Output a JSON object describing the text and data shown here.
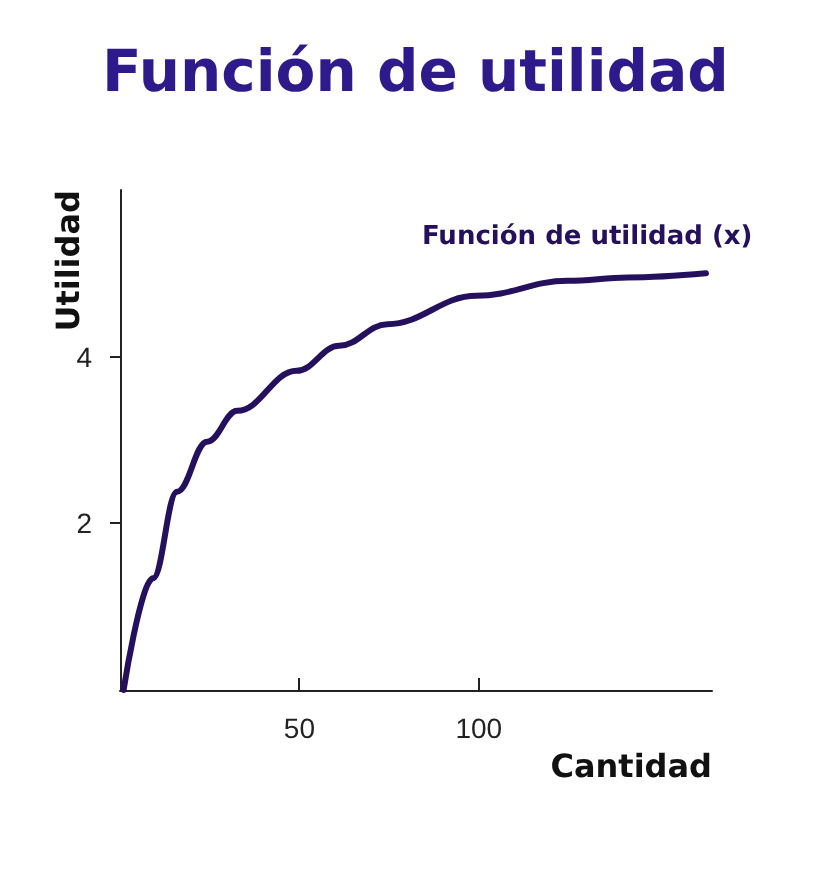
{
  "chart_data": {
    "type": "line",
    "title": "Función de utilidad",
    "xlabel": "Cantidad",
    "ylabel": "Utilidad",
    "x": [
      1,
      9.2,
      15.9,
      24.3,
      32.7,
      49.2,
      61.1,
      74.5,
      99.3,
      124.8,
      141.5,
      163.3
    ],
    "series": [
      {
        "name": "Función de utilidad (x)",
        "color": "#25105e",
        "values": [
          0,
          1.34,
          2.38,
          2.98,
          3.35,
          3.83,
          4.13,
          4.39,
          4.73,
          4.91,
          4.95,
          5.0
        ]
      }
    ],
    "xlim": [
      0,
      165
    ],
    "ylim": [
      0,
      6
    ],
    "xticks": [
      50,
      100
    ],
    "yticks": [
      2,
      4
    ],
    "grid": false,
    "legend": false,
    "marker": "none",
    "line_style": "solid"
  }
}
